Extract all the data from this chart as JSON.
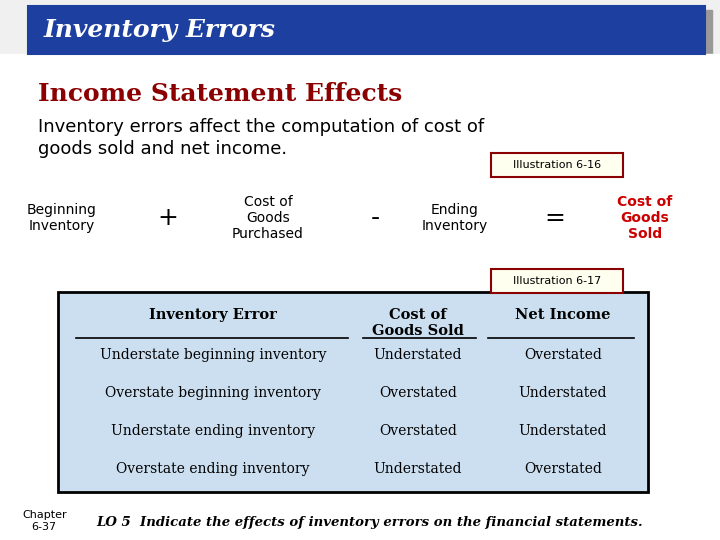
{
  "title_bar_text": "Inventory Errors",
  "title_bar_bg": "#1c3fa0",
  "title_bar_text_color": "#ffffff",
  "title_bar_border": "#000080",
  "section_title": "Income Statement Effects",
  "section_title_color": "#8b0000",
  "body_text_line1": "Inventory errors affect the computation of cost of",
  "body_text_line2": "goods sold and net income.",
  "body_text_color": "#000000",
  "illus16_label": "Illustration 6-16",
  "illus17_label": "Illustration 6-17",
  "illus_border_color": "#8b0000",
  "illus_bg": "#fffff0",
  "formula_items": [
    "Beginning\nInventory",
    "+",
    "Cost of\nGoods\nPurchased",
    "-",
    "Ending\nInventory",
    "=",
    "Cost of\nGoods\nSold"
  ],
  "formula_colors": [
    "#000000",
    "#000000",
    "#000000",
    "#000000",
    "#000000",
    "#000000",
    "#cc0000"
  ],
  "formula_x": [
    62,
    168,
    268,
    375,
    455,
    555,
    645
  ],
  "table_header": [
    "Inventory Error",
    "Cost of\nGoods Sold",
    "Net Income"
  ],
  "table_rows": [
    [
      "Understate beginning inventory",
      "Understated",
      "Overstated"
    ],
    [
      "Overstate beginning inventory",
      "Overstated",
      "Understated"
    ],
    [
      "Understate ending inventory",
      "Overstated",
      "Understated"
    ],
    [
      "Overstate ending inventory",
      "Understated",
      "Overstated"
    ]
  ],
  "table_bg": "#ccdff0",
  "table_border": "#000000",
  "footer_chapter": "Chapter\n6-37",
  "footer_lo": "LO 5  Indicate the effects of inventory errors on the financial statements.",
  "bg_color": "#f0f0f0",
  "shadow_color": "#999999"
}
